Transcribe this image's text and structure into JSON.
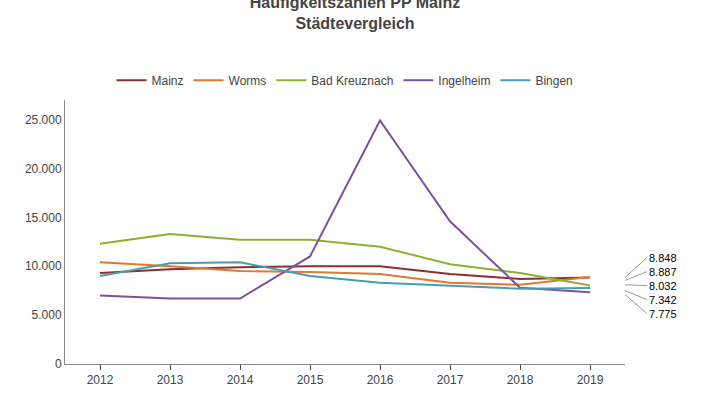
{
  "chart_data": {
    "type": "line",
    "title": "Häufigkeitszahlen PP Mainz\nStädtevergleich",
    "x": [
      2012,
      2013,
      2014,
      2015,
      2016,
      2017,
      2018,
      2019
    ],
    "series": [
      {
        "name": "Mainz",
        "color": "#8B3030",
        "values": [
          9300,
          9700,
          9900,
          10000,
          10000,
          9200,
          8700,
          8848
        ]
      },
      {
        "name": "Worms",
        "color": "#E07830",
        "values": [
          10400,
          10000,
          9500,
          9400,
          9200,
          8300,
          8100,
          8887
        ]
      },
      {
        "name": "Bad Kreuznach",
        "color": "#8DB030",
        "values": [
          12300,
          13300,
          12700,
          12700,
          12000,
          10200,
          9300,
          8032
        ]
      },
      {
        "name": "Ingelheim",
        "color": "#7B52A0",
        "values": [
          7000,
          6700,
          6700,
          11000,
          24900,
          14600,
          7800,
          7342
        ]
      },
      {
        "name": "Bingen",
        "color": "#4A9DB0",
        "values": [
          9000,
          10300,
          10400,
          9000,
          8300,
          8000,
          7700,
          7775
        ]
      }
    ],
    "xlim": [
      2011.5,
      2019.5
    ],
    "xticks": [
      2012,
      2013,
      2014,
      2015,
      2016,
      2017,
      2018,
      2019
    ],
    "ylim": [
      0,
      27000
    ],
    "yticks": [
      0,
      {
        "value": 5000,
        "label": "5.000"
      },
      {
        "value": 10000,
        "label": "10.000"
      },
      {
        "value": 15000,
        "label": "15.000"
      },
      {
        "value": 20000,
        "label": "20.000"
      },
      {
        "value": 25000,
        "label": "25.000"
      }
    ],
    "grid": false,
    "legend": "top",
    "annotations": [
      {
        "text": "8.848",
        "y": 8848
      },
      {
        "text": "8.887",
        "y": 8550
      },
      {
        "text": "8.032",
        "y": 8100
      },
      {
        "text": "7.342",
        "y": 7500
      },
      {
        "text": "7.775",
        "y": 7100
      }
    ]
  }
}
